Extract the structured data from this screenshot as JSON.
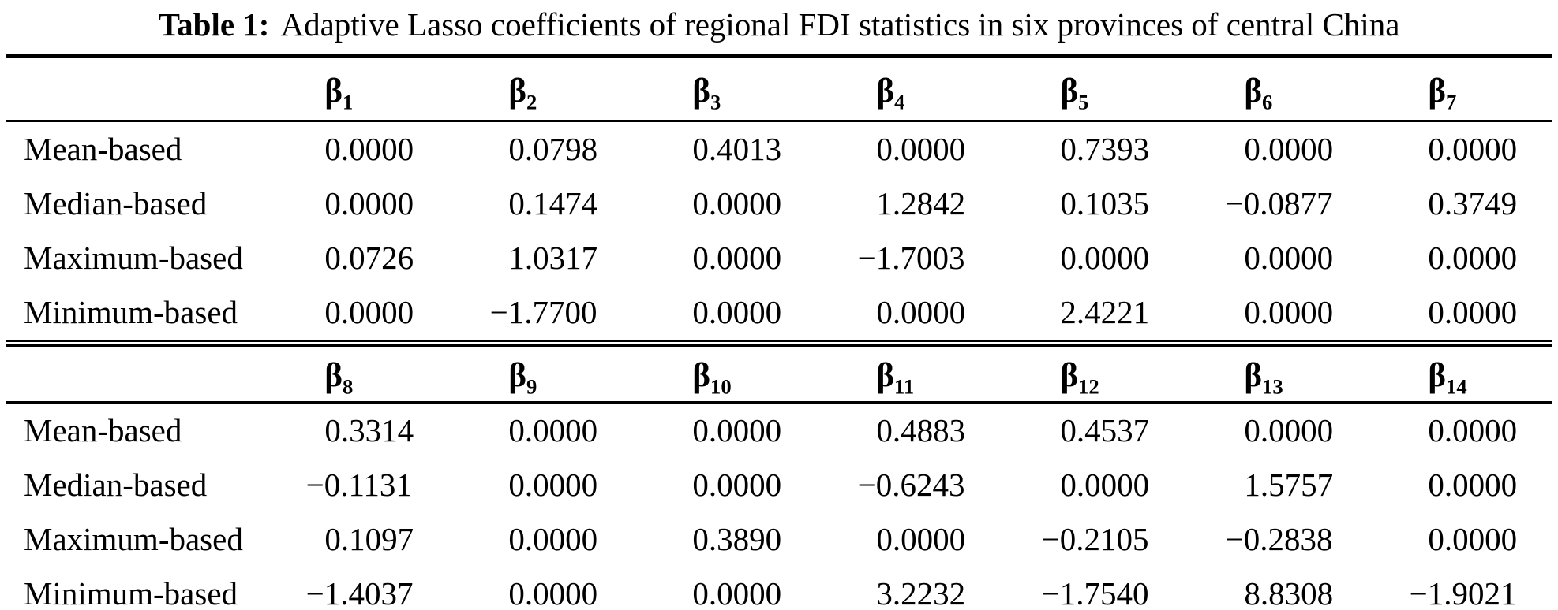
{
  "title": {
    "label": "Table 1:",
    "text": "Adaptive Lasso coefficients of regional FDI statistics in six provinces of central China"
  },
  "table": {
    "sections": [
      {
        "columns": [
          {
            "symbol": "β",
            "subscript": "1"
          },
          {
            "symbol": "β",
            "subscript": "2"
          },
          {
            "symbol": "β",
            "subscript": "3"
          },
          {
            "symbol": "β",
            "subscript": "4"
          },
          {
            "symbol": "β",
            "subscript": "5"
          },
          {
            "symbol": "β",
            "subscript": "6"
          },
          {
            "symbol": "β",
            "subscript": "7"
          }
        ],
        "rows": [
          {
            "label": "Mean-based",
            "values": [
              "0.0000",
              "0.0798",
              "0.4013",
              "0.0000",
              "0.7393",
              "0.0000",
              "0.0000"
            ]
          },
          {
            "label": "Median-based",
            "values": [
              "0.0000",
              "0.1474",
              "0.0000",
              "1.2842",
              "0.1035",
              "−0.0877",
              "0.3749"
            ]
          },
          {
            "label": "Maximum-based",
            "values": [
              "0.0726",
              "1.0317",
              "0.0000",
              "−1.7003",
              "0.0000",
              "0.0000",
              "0.0000"
            ]
          },
          {
            "label": "Minimum-based",
            "values": [
              "0.0000",
              "−1.7700",
              "0.0000",
              "0.0000",
              "2.4221",
              "0.0000",
              "0.0000"
            ]
          }
        ]
      },
      {
        "columns": [
          {
            "symbol": "β",
            "subscript": "8"
          },
          {
            "symbol": "β",
            "subscript": "9"
          },
          {
            "symbol": "β",
            "subscript": "10"
          },
          {
            "symbol": "β",
            "subscript": "11"
          },
          {
            "symbol": "β",
            "subscript": "12"
          },
          {
            "symbol": "β",
            "subscript": "13"
          },
          {
            "symbol": "β",
            "subscript": "14"
          }
        ],
        "rows": [
          {
            "label": "Mean-based",
            "values": [
              "0.3314",
              "0.0000",
              "0.0000",
              "0.4883",
              "0.4537",
              "0.0000",
              "0.0000"
            ]
          },
          {
            "label": "Median-based",
            "values": [
              "−0.1131",
              "0.0000",
              "0.0000",
              "−0.6243",
              "0.0000",
              "1.5757",
              "0.0000"
            ]
          },
          {
            "label": "Maximum-based",
            "values": [
              "0.1097",
              "0.0000",
              "0.3890",
              "0.0000",
              "−0.2105",
              "−0.2838",
              "0.0000"
            ]
          },
          {
            "label": "Minimum-based",
            "values": [
              "−1.4037",
              "0.0000",
              "0.0000",
              "3.2232",
              "−1.7540",
              "8.8308",
              "−1.9021"
            ]
          }
        ]
      }
    ]
  }
}
